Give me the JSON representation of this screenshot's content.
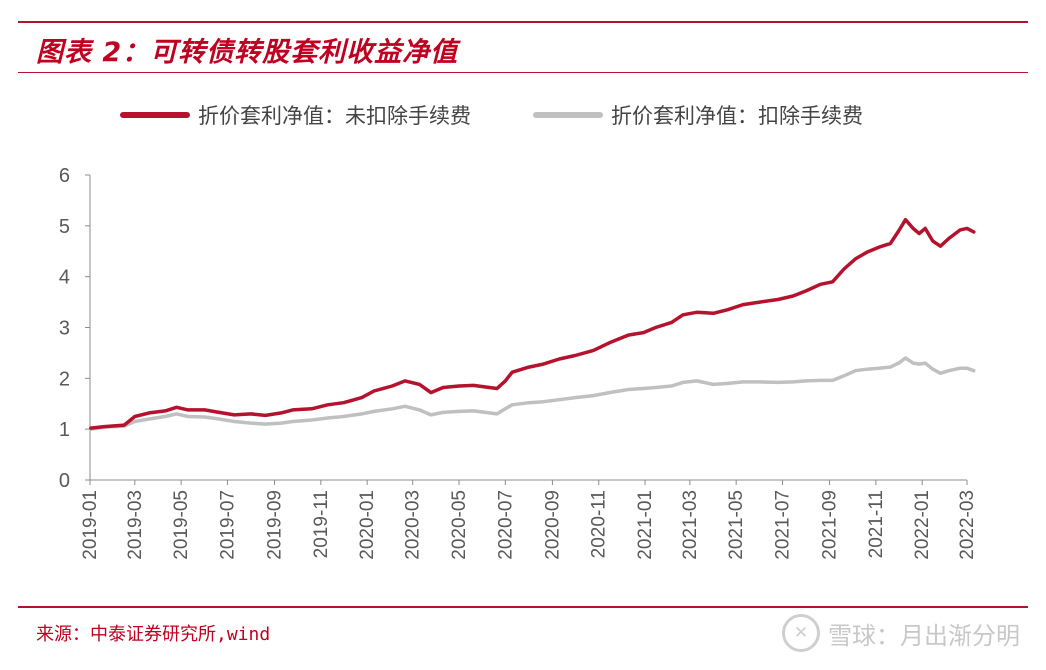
{
  "figure": {
    "title": "图表 2：可转债转股套利收益净值",
    "source": "来源：中泰证券研究所,wind",
    "watermark": "雪球：月出渐分明",
    "watermark_icon": "xueqiu-logo-icon",
    "accent_color": "#b5122e"
  },
  "chart_data": {
    "type": "line",
    "title": "",
    "xlabel": "",
    "ylabel": "",
    "ylim": [
      0,
      6
    ],
    "yticks": [
      "0",
      "1",
      "2",
      "3",
      "4",
      "5",
      "6"
    ],
    "x_range": [
      "2019-01",
      "2022-03"
    ],
    "xticks": [
      "2019-01",
      "2019-03",
      "2019-05",
      "2019-07",
      "2019-09",
      "2019-11",
      "2020-01",
      "2020-03",
      "2020-05",
      "2020-07",
      "2020-09",
      "2020-11",
      "2021-01",
      "2021-03",
      "2021-05",
      "2021-07",
      "2021-09",
      "2021-11",
      "2022-01",
      "2022-03"
    ],
    "grid": false,
    "legend": "top",
    "series": [
      {
        "name": "折价套利净值：未扣除手续费",
        "color": "#b5122e",
        "points": [
          [
            "2019-01-02",
            1.02
          ],
          [
            "2019-01-20",
            1.05
          ],
          [
            "2019-02-15",
            1.08
          ],
          [
            "2019-03-01",
            1.25
          ],
          [
            "2019-03-20",
            1.32
          ],
          [
            "2019-04-10",
            1.36
          ],
          [
            "2019-04-25",
            1.43
          ],
          [
            "2019-05-10",
            1.38
          ],
          [
            "2019-06-01",
            1.38
          ],
          [
            "2019-06-20",
            1.33
          ],
          [
            "2019-07-10",
            1.28
          ],
          [
            "2019-08-01",
            1.3
          ],
          [
            "2019-08-20",
            1.27
          ],
          [
            "2019-09-10",
            1.32
          ],
          [
            "2019-09-25",
            1.38
          ],
          [
            "2019-10-20",
            1.4
          ],
          [
            "2019-11-10",
            1.48
          ],
          [
            "2019-12-01",
            1.52
          ],
          [
            "2019-12-25",
            1.62
          ],
          [
            "2020-01-10",
            1.75
          ],
          [
            "2020-02-03",
            1.85
          ],
          [
            "2020-02-20",
            1.95
          ],
          [
            "2020-03-10",
            1.88
          ],
          [
            "2020-03-25",
            1.72
          ],
          [
            "2020-04-10",
            1.82
          ],
          [
            "2020-05-01",
            1.85
          ],
          [
            "2020-05-20",
            1.86
          ],
          [
            "2020-06-05",
            1.83
          ],
          [
            "2020-06-20",
            1.8
          ],
          [
            "2020-07-01",
            1.95
          ],
          [
            "2020-07-10",
            2.12
          ],
          [
            "2020-08-01",
            2.22
          ],
          [
            "2020-08-20",
            2.28
          ],
          [
            "2020-09-10",
            2.38
          ],
          [
            "2020-10-01",
            2.45
          ],
          [
            "2020-10-25",
            2.55
          ],
          [
            "2020-11-15",
            2.7
          ],
          [
            "2020-12-10",
            2.85
          ],
          [
            "2020-12-30",
            2.9
          ],
          [
            "2021-01-15",
            3.0
          ],
          [
            "2021-02-05",
            3.1
          ],
          [
            "2021-02-20",
            3.25
          ],
          [
            "2021-03-10",
            3.3
          ],
          [
            "2021-04-01",
            3.28
          ],
          [
            "2021-04-20",
            3.35
          ],
          [
            "2021-05-10",
            3.45
          ],
          [
            "2021-06-01",
            3.5
          ],
          [
            "2021-06-25",
            3.55
          ],
          [
            "2021-07-15",
            3.62
          ],
          [
            "2021-08-01",
            3.72
          ],
          [
            "2021-08-20",
            3.85
          ],
          [
            "2021-09-05",
            3.9
          ],
          [
            "2021-09-20",
            4.15
          ],
          [
            "2021-10-05",
            4.35
          ],
          [
            "2021-10-20",
            4.48
          ],
          [
            "2021-11-05",
            4.58
          ],
          [
            "2021-11-20",
            4.65
          ],
          [
            "2021-12-01",
            4.9
          ],
          [
            "2021-12-10",
            5.12
          ],
          [
            "2021-12-20",
            4.95
          ],
          [
            "2021-12-28",
            4.85
          ],
          [
            "2022-01-05",
            4.95
          ],
          [
            "2022-01-15",
            4.7
          ],
          [
            "2022-01-25",
            4.6
          ],
          [
            "2022-02-05",
            4.75
          ],
          [
            "2022-02-20",
            4.92
          ],
          [
            "2022-03-01",
            4.95
          ],
          [
            "2022-03-10",
            4.88
          ]
        ]
      },
      {
        "name": "折价套利净值：扣除手续费",
        "color": "#c0c0c0",
        "points": [
          [
            "2019-01-02",
            1.0
          ],
          [
            "2019-01-20",
            1.04
          ],
          [
            "2019-02-15",
            1.06
          ],
          [
            "2019-03-01",
            1.15
          ],
          [
            "2019-03-20",
            1.2
          ],
          [
            "2019-04-10",
            1.25
          ],
          [
            "2019-04-25",
            1.3
          ],
          [
            "2019-05-10",
            1.25
          ],
          [
            "2019-06-01",
            1.24
          ],
          [
            "2019-06-20",
            1.2
          ],
          [
            "2019-07-10",
            1.15
          ],
          [
            "2019-08-01",
            1.12
          ],
          [
            "2019-08-20",
            1.1
          ],
          [
            "2019-09-10",
            1.12
          ],
          [
            "2019-09-25",
            1.15
          ],
          [
            "2019-10-20",
            1.18
          ],
          [
            "2019-11-10",
            1.22
          ],
          [
            "2019-12-01",
            1.25
          ],
          [
            "2019-12-25",
            1.3
          ],
          [
            "2020-01-10",
            1.35
          ],
          [
            "2020-02-03",
            1.4
          ],
          [
            "2020-02-20",
            1.45
          ],
          [
            "2020-03-10",
            1.38
          ],
          [
            "2020-03-25",
            1.28
          ],
          [
            "2020-04-10",
            1.33
          ],
          [
            "2020-05-01",
            1.35
          ],
          [
            "2020-05-20",
            1.36
          ],
          [
            "2020-06-05",
            1.33
          ],
          [
            "2020-06-20",
            1.3
          ],
          [
            "2020-07-01",
            1.4
          ],
          [
            "2020-07-10",
            1.48
          ],
          [
            "2020-08-01",
            1.52
          ],
          [
            "2020-08-20",
            1.54
          ],
          [
            "2020-09-10",
            1.58
          ],
          [
            "2020-10-01",
            1.62
          ],
          [
            "2020-10-25",
            1.66
          ],
          [
            "2020-11-15",
            1.72
          ],
          [
            "2020-12-10",
            1.78
          ],
          [
            "2020-12-30",
            1.8
          ],
          [
            "2021-01-15",
            1.82
          ],
          [
            "2021-02-05",
            1.85
          ],
          [
            "2021-02-20",
            1.92
          ],
          [
            "2021-03-10",
            1.95
          ],
          [
            "2021-04-01",
            1.88
          ],
          [
            "2021-04-20",
            1.9
          ],
          [
            "2021-05-10",
            1.93
          ],
          [
            "2021-06-01",
            1.93
          ],
          [
            "2021-06-25",
            1.92
          ],
          [
            "2021-07-15",
            1.93
          ],
          [
            "2021-08-01",
            1.95
          ],
          [
            "2021-08-20",
            1.96
          ],
          [
            "2021-09-05",
            1.96
          ],
          [
            "2021-09-20",
            2.05
          ],
          [
            "2021-10-05",
            2.15
          ],
          [
            "2021-10-20",
            2.18
          ],
          [
            "2021-11-05",
            2.2
          ],
          [
            "2021-11-20",
            2.22
          ],
          [
            "2021-12-01",
            2.3
          ],
          [
            "2021-12-10",
            2.4
          ],
          [
            "2021-12-20",
            2.3
          ],
          [
            "2021-12-28",
            2.28
          ],
          [
            "2022-01-05",
            2.3
          ],
          [
            "2022-01-15",
            2.18
          ],
          [
            "2022-01-25",
            2.1
          ],
          [
            "2022-02-05",
            2.15
          ],
          [
            "2022-02-20",
            2.2
          ],
          [
            "2022-03-01",
            2.2
          ],
          [
            "2022-03-10",
            2.15
          ]
        ]
      }
    ]
  }
}
